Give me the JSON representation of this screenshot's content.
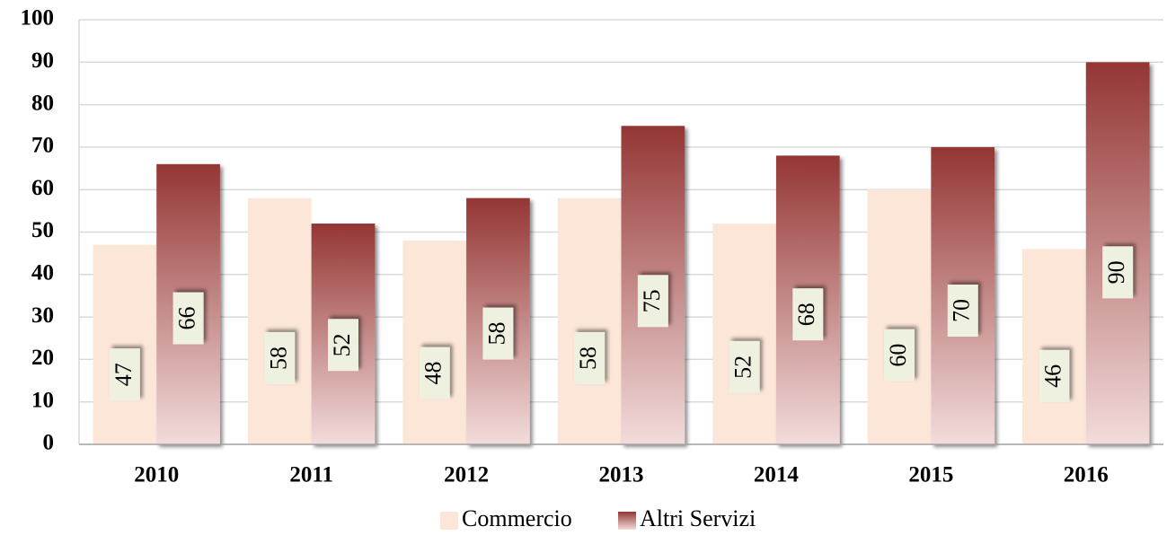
{
  "chart_data": {
    "type": "bar",
    "categories": [
      "2010",
      "2011",
      "2012",
      "2013",
      "2014",
      "2015",
      "2016"
    ],
    "series": [
      {
        "name": "Commercio",
        "color": "#fce6d8",
        "values": [
          47,
          58,
          48,
          58,
          52,
          60,
          46
        ]
      },
      {
        "name": "Altri Servizi",
        "color": "#943634",
        "values": [
          66,
          52,
          58,
          75,
          68,
          70,
          90
        ]
      }
    ],
    "ylim": [
      0,
      100
    ],
    "yticks": [
      0,
      10,
      20,
      30,
      40,
      50,
      60,
      70,
      80,
      90,
      100
    ],
    "grid": true,
    "legend": "bottom"
  }
}
